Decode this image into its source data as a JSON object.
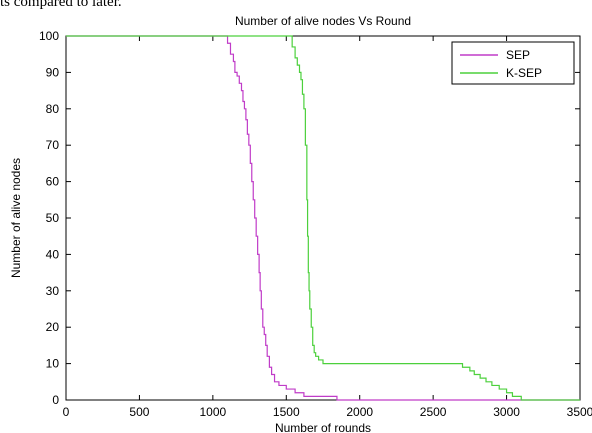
{
  "caption_fragment": "ts compared to later.",
  "chart_data": {
    "type": "line",
    "title": "Number of alive nodes Vs Round",
    "xlabel": "Number of rounds",
    "ylabel": "Number of alive nodes",
    "xlim": [
      0,
      3500
    ],
    "ylim": [
      0,
      100
    ],
    "xticks": [
      "0",
      "500",
      "1000",
      "1500",
      "2000",
      "2500",
      "3000",
      "3500"
    ],
    "yticks": [
      "0",
      "10",
      "20",
      "30",
      "40",
      "50",
      "60",
      "70",
      "80",
      "90",
      "100"
    ],
    "grid": false,
    "legend_position": "top-right",
    "series": [
      {
        "name": "SEP",
        "color": "#c03cc8",
        "x": [
          0,
          1080,
          1100,
          1120,
          1140,
          1150,
          1165,
          1180,
          1195,
          1205,
          1215,
          1225,
          1235,
          1245,
          1255,
          1265,
          1275,
          1285,
          1295,
          1305,
          1315,
          1322,
          1330,
          1340,
          1350,
          1360,
          1370,
          1385,
          1400,
          1420,
          1450,
          1500,
          1560,
          1620,
          1700,
          1780,
          1840,
          1845,
          3500
        ],
        "y": [
          100,
          100,
          98,
          95,
          93,
          90,
          89,
          87,
          85,
          82,
          80,
          77,
          73,
          70,
          65,
          60,
          55,
          50,
          45,
          40,
          35,
          30,
          25,
          20,
          18,
          15,
          12,
          9,
          7,
          5,
          4,
          3,
          2,
          1,
          1,
          1,
          1,
          0,
          0
        ]
      },
      {
        "name": "K-SEP",
        "color": "#4cd03c",
        "x": [
          0,
          1520,
          1540,
          1560,
          1575,
          1590,
          1600,
          1610,
          1620,
          1630,
          1640,
          1645,
          1650,
          1655,
          1660,
          1670,
          1680,
          1690,
          1700,
          1720,
          1750,
          2000,
          2500,
          2650,
          2700,
          2750,
          2780,
          2820,
          2860,
          2900,
          2950,
          3000,
          3040,
          3080,
          3100,
          3500
        ],
        "y": [
          100,
          100,
          97,
          94,
          92,
          90,
          88,
          84,
          80,
          70,
          55,
          45,
          35,
          30,
          25,
          20,
          15,
          13,
          12,
          11,
          10,
          10,
          10,
          10,
          9,
          8,
          7,
          6,
          5,
          4,
          3,
          2,
          1,
          1,
          0,
          0
        ]
      }
    ]
  }
}
